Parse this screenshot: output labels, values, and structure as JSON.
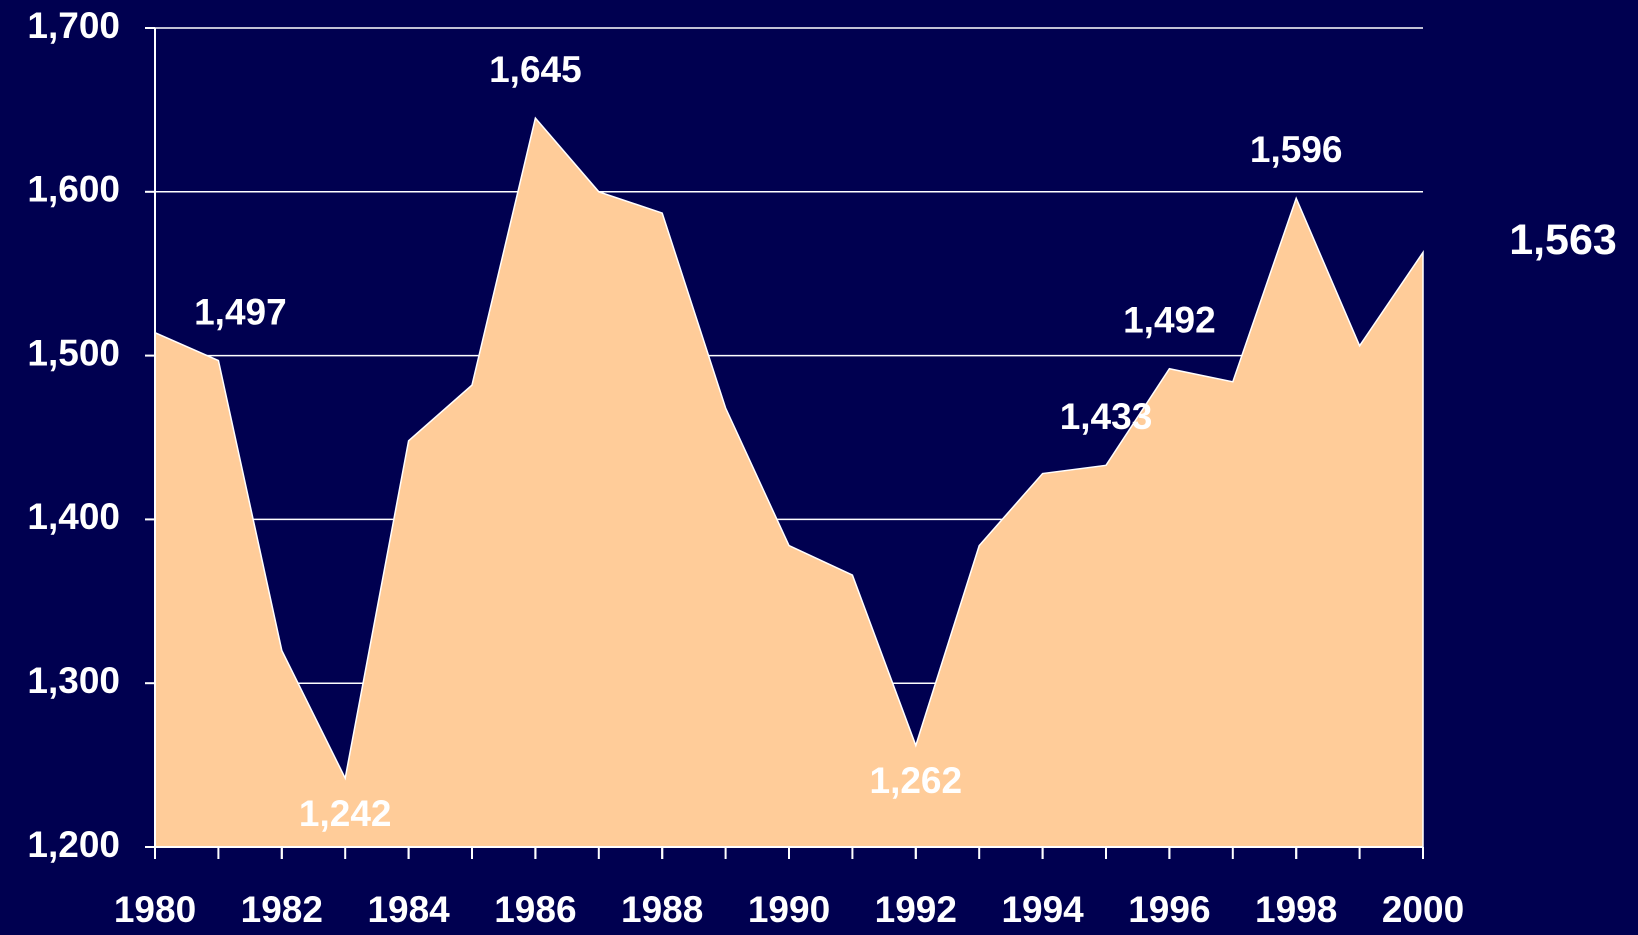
{
  "chart_data": {
    "type": "area",
    "x": [
      1980,
      1981,
      1982,
      1983,
      1984,
      1985,
      1986,
      1987,
      1988,
      1989,
      1990,
      1991,
      1992,
      1993,
      1994,
      1995,
      1996,
      1997,
      1998,
      1999,
      2000
    ],
    "values": [
      1514,
      1497,
      1320,
      1242,
      1448,
      1482,
      1645,
      1600,
      1587,
      1468,
      1384,
      1366,
      1262,
      1384,
      1428,
      1433,
      1492,
      1484,
      1596,
      1506,
      1563
    ],
    "value_labels": [
      null,
      "1,497",
      null,
      "1,242",
      null,
      null,
      "1,645",
      null,
      null,
      null,
      null,
      null,
      "1,262",
      null,
      null,
      "1,433",
      "1,492",
      null,
      "1,596",
      null,
      "1,563"
    ],
    "color": "#ffcc99",
    "background": "#000050",
    "xlim": [
      1980,
      2000
    ],
    "xticks": [
      1980,
      1982,
      1984,
      1986,
      1988,
      1990,
      1992,
      1994,
      1996,
      1998,
      2000
    ],
    "ylim": [
      1200,
      1700
    ],
    "yticks": [
      {
        "value": 1200,
        "label": "1,200"
      },
      {
        "value": 1300,
        "label": "1,300"
      },
      {
        "value": 1400,
        "label": "1,400"
      },
      {
        "value": 1500,
        "label": "1,500"
      },
      {
        "value": 1600,
        "label": "1,600"
      },
      {
        "value": 1700,
        "label": "1,700"
      }
    ],
    "grid": true
  }
}
